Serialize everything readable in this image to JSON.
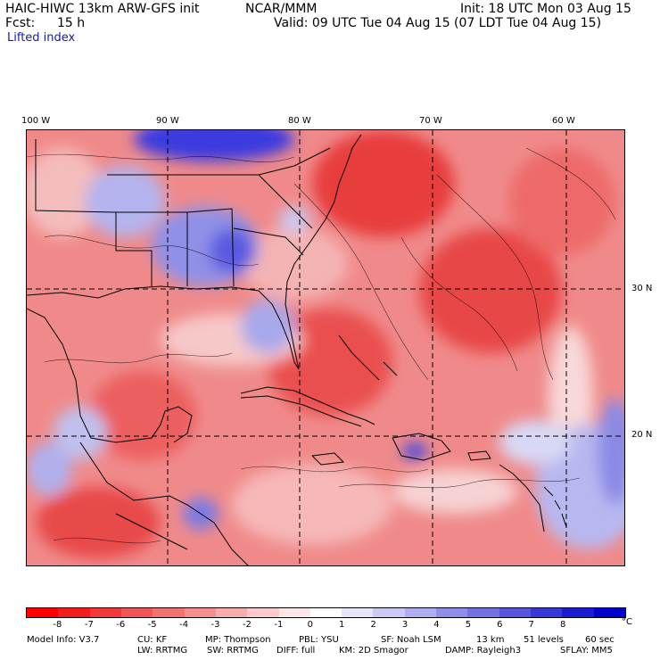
{
  "header": {
    "model_title": "HAIC-HIWC 13km ARW-GFS init",
    "org": "NCAR/MMM",
    "init": "Init: 18 UTC Mon 03 Aug 15",
    "fcst_label": "Fcst:",
    "fcst_value": "15 h",
    "valid": "Valid: 09 UTC Tue 04 Aug 15 (07 LDT Tue 04 Aug 15)",
    "field": "Lifted index"
  },
  "map": {
    "lon_labels": [
      "100 W",
      "90 W",
      "80 W",
      "70 W",
      "60 W"
    ],
    "lat_labels": [
      "30 N",
      "20 N"
    ],
    "colors": {
      "strong_negative": "#e8252a",
      "mid_negative": "#f08080",
      "weak_negative": "#f8c8c8",
      "neutral": "#ffffff",
      "weak_positive": "#c8c8f0",
      "strong_positive": "#1010d8"
    }
  },
  "colorbar": {
    "unit": "°C",
    "ticks": [
      "-8",
      "-7",
      "-6",
      "-5",
      "-4",
      "-3",
      "-2",
      "-1",
      "0",
      "1",
      "2",
      "3",
      "4",
      "5",
      "6",
      "7",
      "8"
    ],
    "colors": [
      "#ff0000",
      "#f31c1c",
      "#f23838",
      "#f15555",
      "#f27272",
      "#f58f8f",
      "#f8adad",
      "#fbcaca",
      "#fde6e6",
      "#ffffff",
      "#e6e6fb",
      "#cacaf5",
      "#adadef",
      "#8f8fe9",
      "#7272e3",
      "#5555dd",
      "#3838d7",
      "#1c1cd1",
      "#0000cb"
    ]
  },
  "footer": {
    "line1": [
      "Model Info: V3.7",
      "CU: KF",
      "MP: Thompson",
      "PBL: YSU",
      "SF: Noah LSM",
      "13 km",
      "51 levels",
      "60 sec"
    ],
    "line2": [
      "LW: RRTMG",
      "SW: RRTMG",
      "DIFF: full",
      "KM: 2D Smagor",
      "DAMP: Rayleigh3",
      "SFLAY: MM5"
    ]
  }
}
